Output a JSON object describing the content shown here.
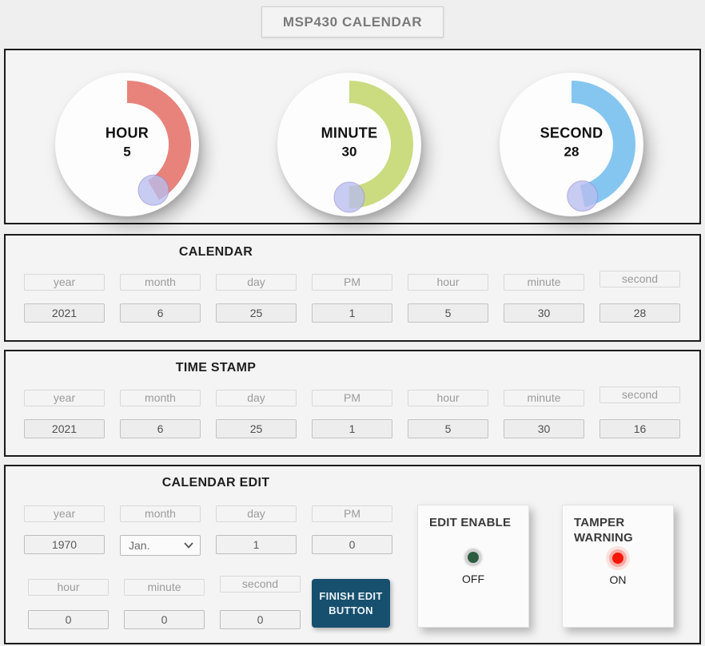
{
  "title": "MSP430 CALENDAR",
  "knob_color": "#b9bcee",
  "gauges": [
    {
      "label": "HOUR",
      "value": 5,
      "max": 12,
      "arc_color": "#e8837b"
    },
    {
      "label": "MINUTE",
      "value": 30,
      "max": 60,
      "arc_color": "#cbdb80"
    },
    {
      "label": "SECOND",
      "value": 28,
      "max": 60,
      "arc_color": "#85c6f0"
    }
  ],
  "calendar": {
    "title": "CALENDAR",
    "fields": [
      {
        "label": "year",
        "value": "2021"
      },
      {
        "label": "month",
        "value": "6"
      },
      {
        "label": "day",
        "value": "25"
      },
      {
        "label": "PM",
        "value": "1"
      },
      {
        "label": "hour",
        "value": "5"
      },
      {
        "label": "minute",
        "value": "30"
      },
      {
        "label": "second",
        "value": "28"
      }
    ]
  },
  "timestamp": {
    "title": "TIME STAMP",
    "fields": [
      {
        "label": "year",
        "value": "2021"
      },
      {
        "label": "month",
        "value": "6"
      },
      {
        "label": "day",
        "value": "25"
      },
      {
        "label": "PM",
        "value": "1"
      },
      {
        "label": "hour",
        "value": "5"
      },
      {
        "label": "minute",
        "value": "30"
      },
      {
        "label": "second",
        "value": "16"
      }
    ]
  },
  "calendar_edit": {
    "title": "CALENDAR EDIT",
    "top_fields": [
      {
        "label": "year",
        "value": "1970"
      },
      {
        "label": "month",
        "value": "Jan."
      },
      {
        "label": "day",
        "value": "1"
      },
      {
        "label": "PM",
        "value": "0"
      }
    ],
    "bottom_fields": [
      {
        "label": "hour",
        "value": "0"
      },
      {
        "label": "minute",
        "value": "0"
      },
      {
        "label": "second",
        "value": "0"
      }
    ],
    "finish_button": {
      "line1": "FINISH EDIT",
      "line2": "BUTTON",
      "color": "#174f6e"
    },
    "edit_enable": {
      "title": "EDIT ENABLE",
      "state": "OFF",
      "led_color": "#2e5c41"
    },
    "tamper_warning": {
      "title": "TAMPER WARNING",
      "state": "ON",
      "led_color": "#f5170a"
    }
  }
}
